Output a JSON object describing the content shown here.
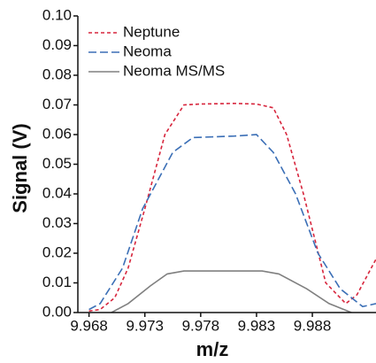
{
  "chart_data": {
    "type": "line",
    "xlabel": "m/z",
    "ylabel": "Signal (V)",
    "xlim": [
      9.967,
      9.9937
    ],
    "ylim": [
      0,
      0.1
    ],
    "xticks": [
      9.968,
      9.973,
      9.978,
      9.983,
      9.988
    ],
    "yticks": [
      {
        "value": 0,
        "label": "0.00"
      },
      {
        "value": 0.01,
        "label": "0.01"
      },
      {
        "value": 0.02,
        "label": "0.02"
      },
      {
        "value": 0.03,
        "label": "0.03"
      },
      {
        "value": 0.04,
        "label": "0.04"
      },
      {
        "value": 0.05,
        "label": "0.05"
      },
      {
        "value": 0.06,
        "label": "0.06"
      },
      {
        "value": 0.07,
        "label": "0.07"
      },
      {
        "value": 0.08,
        "label": "0.08"
      },
      {
        "value": 0.09,
        "label": "0.09"
      },
      {
        "value": 0.1,
        "label": "0.10"
      }
    ],
    "legend": "upper left",
    "series": [
      {
        "name": "Neptune",
        "color": "#d7263d",
        "dash": "4 3",
        "x": [
          9.968,
          9.969,
          9.9703,
          9.9715,
          9.973,
          9.9748,
          9.9765,
          9.978,
          9.981,
          9.983,
          9.9845,
          9.9857,
          9.9872,
          9.9892,
          9.991,
          9.992,
          9.9937
        ],
        "values": [
          0.0005,
          0.001,
          0.005,
          0.015,
          0.035,
          0.06,
          0.07,
          0.0703,
          0.0705,
          0.0703,
          0.069,
          0.06,
          0.04,
          0.01,
          0.003,
          0.006,
          0.018
        ]
      },
      {
        "name": "Neoma",
        "color": "#3b6fb6",
        "dash": "9 4",
        "x": [
          9.968,
          9.969,
          9.971,
          9.9728,
          9.9755,
          9.9773,
          9.981,
          9.983,
          9.9845,
          9.9865,
          9.9885,
          9.9905,
          9.9925,
          9.9937
        ],
        "values": [
          0.001,
          0.003,
          0.015,
          0.035,
          0.054,
          0.059,
          0.0595,
          0.06,
          0.054,
          0.04,
          0.02,
          0.008,
          0.002,
          0.003
        ]
      },
      {
        "name": "Neoma MS/MS",
        "color": "#808080",
        "dash": "",
        "x": [
          9.97,
          9.9715,
          9.9735,
          9.975,
          9.9765,
          9.98,
          9.9835,
          9.985,
          9.9875,
          9.9895,
          9.9915
        ],
        "values": [
          0,
          0.003,
          0.009,
          0.013,
          0.014,
          0.014,
          0.014,
          0.013,
          0.008,
          0.003,
          0
        ]
      }
    ]
  }
}
